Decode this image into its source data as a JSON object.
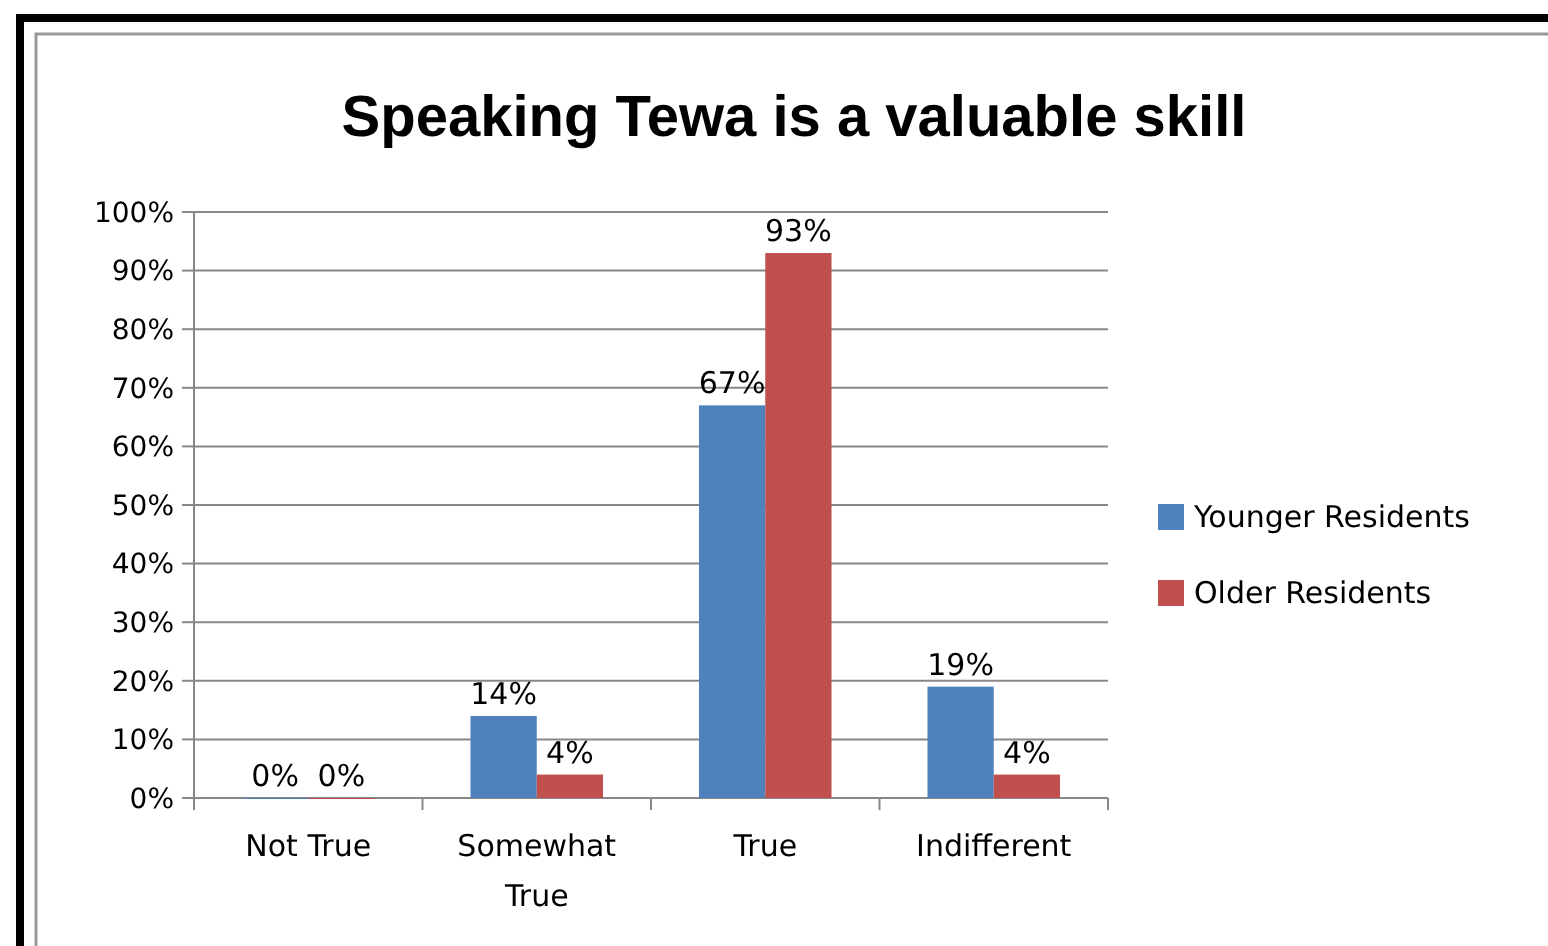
{
  "chart_data": {
    "type": "bar",
    "title": "Speaking Tewa is a valuable skill",
    "categories": [
      "Not True",
      "Somewhat True",
      "True",
      "Indifferent"
    ],
    "series": [
      {
        "name": "Younger Residents",
        "color": "#4f81bd",
        "values": [
          0,
          14,
          67,
          19
        ],
        "value_labels": [
          "0%",
          "14%",
          "67%",
          "19%"
        ]
      },
      {
        "name": "Older Residents",
        "color": "#c0504d",
        "values": [
          0,
          4,
          93,
          4
        ],
        "value_labels": [
          "0%",
          "4%",
          "93%",
          "4%"
        ]
      }
    ],
    "ylim": [
      0,
      100
    ],
    "yticks": [
      {
        "value": 0,
        "label": "0%"
      },
      {
        "value": 10,
        "label": "10%"
      },
      {
        "value": 20,
        "label": "20%"
      },
      {
        "value": 30,
        "label": "30%"
      },
      {
        "value": 40,
        "label": "40%"
      },
      {
        "value": 50,
        "label": "50%"
      },
      {
        "value": 60,
        "label": "60%"
      },
      {
        "value": 70,
        "label": "70%"
      },
      {
        "value": 80,
        "label": "80%"
      },
      {
        "value": 90,
        "label": "90%"
      },
      {
        "value": 100,
        "label": "100%"
      }
    ],
    "grid": "y",
    "legend": "right"
  }
}
